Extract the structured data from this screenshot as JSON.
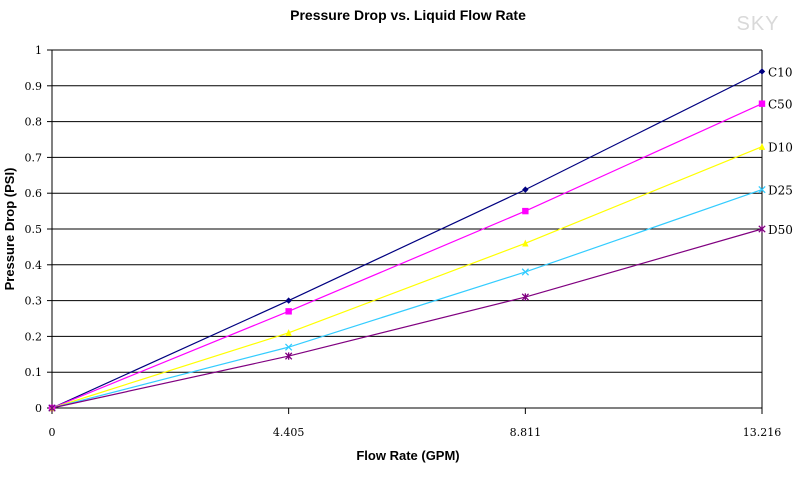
{
  "watermark": "SKY",
  "chart_data": {
    "type": "line",
    "title": "Pressure Drop vs. Liquid Flow Rate",
    "xlabel": "Flow Rate (GPM)",
    "ylabel": "Pressure Drop (PSI)",
    "xlim": [
      0,
      13.216
    ],
    "ylim": [
      0,
      1
    ],
    "grid": true,
    "x_ticks": [
      "0",
      "4.405",
      "8.811",
      "13.216"
    ],
    "x_tick_values": [
      0,
      4.405,
      8.811,
      13.216
    ],
    "y_ticks": [
      "0",
      "0.1",
      "0.2",
      "0.3",
      "0.4",
      "0.5",
      "0.6",
      "0.7",
      "0.8",
      "0.9",
      "1"
    ],
    "y_tick_values": [
      0,
      0.1,
      0.2,
      0.3,
      0.4,
      0.5,
      0.6,
      0.7,
      0.8,
      0.9,
      1
    ],
    "x": [
      0,
      4.405,
      8.811,
      13.216
    ],
    "series": [
      {
        "name": "C10",
        "color": "#000080",
        "marker": "diamond",
        "values": [
          0,
          0.3,
          0.61,
          0.94
        ]
      },
      {
        "name": "C50",
        "color": "#ff00ff",
        "marker": "square",
        "values": [
          0,
          0.27,
          0.55,
          0.85
        ]
      },
      {
        "name": "D10",
        "color": "#ffff00",
        "marker": "triangle",
        "values": [
          0,
          0.21,
          0.46,
          0.73
        ]
      },
      {
        "name": "D25",
        "color": "#33ccff",
        "marker": "x",
        "values": [
          0,
          0.17,
          0.38,
          0.61
        ]
      },
      {
        "name": "D50",
        "color": "#800080",
        "marker": "star",
        "values": [
          0,
          0.145,
          0.31,
          0.5
        ]
      }
    ]
  }
}
